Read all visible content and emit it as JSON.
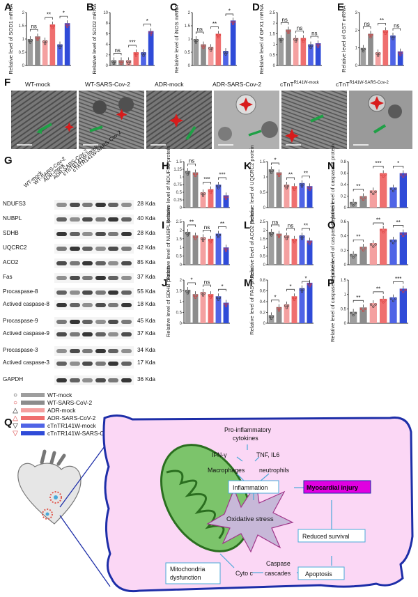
{
  "colors": {
    "wt_mock": "#9e9e9e",
    "wt_cov": "#8c8c8c",
    "adr_mock": "#f4a0a0",
    "adr_cov": "#ef6f6f",
    "r141w_mock": "#4f64e6",
    "r141w_cov": "#2f4bd8",
    "cell_fill": "#fbd7f5",
    "cell_stroke": "#1d2ea8",
    "mito_fill": "#7cc46b",
    "mito_inner": "#3f8a2f",
    "burst_fill": "#c7b8d8",
    "box_stroke": "#4aa8d8",
    "injury_fill": "#e000e0"
  },
  "panel_letters": {
    "A": "A",
    "B": "B",
    "C": "C",
    "D": "D",
    "E": "E",
    "F": "F",
    "G": "G",
    "H": "H",
    "I": "I",
    "J": "J",
    "K": "K",
    "L": "L",
    "M": "M",
    "N": "N",
    "O": "O",
    "P": "P",
    "Q": "Q"
  },
  "em_titles": [
    "WT-mock",
    "WT-SARS-Cov-2",
    "ADR-mock",
    "ADR-SARS-Cov-2",
    "cTnT",
    "cTnT"
  ],
  "em_title_suffix": [
    "",
    "",
    "",
    "",
    "R141W-mock",
    "R141W-SARS-Cov-2"
  ],
  "wb": {
    "columns": [
      "WT-mock",
      "WT-SARS-Cov-2",
      "ADR-mock",
      "ADR-SARS-Cov-2",
      "cTnTR141W-mock",
      "cTnTR141W-SARS-Cov-2"
    ],
    "rows": [
      {
        "label": "NDUFS3",
        "kda": "28 Kda"
      },
      {
        "label": "NUBPL",
        "kda": "40 Kda"
      },
      {
        "label": "SDHB",
        "kda": "28 Kda"
      },
      {
        "label": "UQCRC2",
        "kda": "42 Kda"
      },
      {
        "label": "ACO2",
        "kda": "85 Kda"
      },
      {
        "label": "Fas",
        "kda": "37 Kda"
      },
      {
        "label": "Procaspase-8",
        "kda": "55 Kda"
      },
      {
        "label": "Actived caspase-8",
        "kda": "18 Kda"
      },
      {
        "label": "Procaspase-9",
        "kda": "45 Kda"
      },
      {
        "label": "Actived caspase-9",
        "kda": "37 Kda"
      },
      {
        "label": "Procaspase-3",
        "kda": "34 Kda"
      },
      {
        "label": "Actived caspase-3",
        "kda": "17 Kda"
      },
      {
        "label": "GAPDH",
        "kda": "36 Kda"
      }
    ]
  },
  "legend": [
    {
      "symbol": "○",
      "label": "WT-mock",
      "color": "#9e9e9e"
    },
    {
      "symbol": "○",
      "label": "WT-SARS-CoV-2",
      "color": "#8c8c8c"
    },
    {
      "symbol": "△",
      "label": "ADR-mock",
      "color": "#f4a0a0"
    },
    {
      "symbol": "△",
      "label": "ADR-SARS-CoV-2",
      "color": "#ef6f6f"
    },
    {
      "symbol": "▽",
      "label": "cTnTR141W-mock",
      "color": "#4f64e6"
    },
    {
      "symbol": "▽",
      "label": "cTnTR141W-SARS-CoV-2",
      "color": "#2f4bd8"
    }
  ],
  "chart_data": [
    {
      "panel": "A",
      "type": "bar",
      "ylabel": "Relative level of SOD1 mRNA",
      "ylim": [
        0,
        2
      ],
      "yticks": [
        0,
        0.5,
        1.0,
        1.5,
        2.0
      ],
      "categories": [
        "WT-mock",
        "WT-SARS-CoV-2",
        "ADR-mock",
        "ADR-SARS-CoV-2",
        "cTnTR141W-mock",
        "cTnTR141W-SARS-CoV-2"
      ],
      "values": [
        1.0,
        1.1,
        0.95,
        1.55,
        0.8,
        1.6
      ],
      "annotations": [
        "ns",
        "**",
        "*"
      ]
    },
    {
      "panel": "B",
      "type": "bar",
      "ylabel": "Relative level of SOD2 mRNA",
      "ylim": [
        0,
        10
      ],
      "yticks": [
        0,
        2,
        4,
        6,
        8,
        10
      ],
      "values": [
        1.0,
        1.0,
        1.0,
        2.5,
        2.5,
        6.5
      ],
      "annotations": [
        "ns",
        "***",
        "*"
      ]
    },
    {
      "panel": "C",
      "type": "bar",
      "ylabel": "Relative level of iNOS mRNA",
      "ylim": [
        0,
        2
      ],
      "yticks": [
        0,
        0.5,
        1.0,
        1.5,
        2.0
      ],
      "values": [
        1.0,
        0.8,
        0.7,
        1.2,
        0.55,
        1.7
      ],
      "annotations": [
        "ns",
        "**",
        "*"
      ]
    },
    {
      "panel": "D",
      "type": "bar",
      "ylabel": "Relative level of GPX1 mRNA",
      "ylim": [
        0,
        2.5
      ],
      "yticks": [
        0,
        0.5,
        1.0,
        1.5,
        2.0,
        2.5
      ],
      "values": [
        1.3,
        1.7,
        1.3,
        1.3,
        1.0,
        1.05
      ],
      "annotations": [
        "ns",
        "ns",
        "ns"
      ]
    },
    {
      "panel": "E",
      "type": "bar",
      "ylabel": "Relative level of GST mRNA",
      "ylim": [
        0,
        3
      ],
      "yticks": [
        0,
        1,
        2,
        3
      ],
      "values": [
        1.0,
        1.8,
        0.75,
        2.0,
        1.7,
        0.8
      ],
      "annotations": [
        "ns",
        "**",
        "ns"
      ]
    },
    {
      "panel": "H",
      "type": "bar",
      "ylabel": "Relative level of NDUFS3 protein",
      "ylim": [
        0,
        1.5
      ],
      "yticks": [
        0,
        0.25,
        0.5,
        0.75,
        1.0,
        1.25,
        1.5
      ],
      "values": [
        1.2,
        1.15,
        0.5,
        0.6,
        0.75,
        0.4
      ],
      "annotations": [
        "ns",
        "***",
        "***"
      ]
    },
    {
      "panel": "I",
      "type": "bar",
      "ylabel": "Relative level of NUBPL protein",
      "ylim": [
        0,
        2.5
      ],
      "yticks": [
        0,
        0.5,
        1.0,
        1.5,
        2.0,
        2.5
      ],
      "values": [
        1.9,
        1.7,
        1.6,
        1.5,
        1.8,
        1.0
      ],
      "annotations": [
        "**",
        "ns",
        "**"
      ]
    },
    {
      "panel": "J",
      "type": "bar",
      "ylabel": "Relative level of SDHB protein",
      "ylim": [
        0,
        2.0
      ],
      "yticks": [
        0,
        0.5,
        1.0,
        1.5,
        2.0
      ],
      "values": [
        1.55,
        1.35,
        1.45,
        1.35,
        1.25,
        0.95
      ],
      "annotations": [
        "*",
        "ns",
        "*"
      ]
    },
    {
      "panel": "K",
      "type": "bar",
      "ylabel": "Relative level of UQCRC2 protein",
      "ylim": [
        0,
        1.5
      ],
      "yticks": [
        0,
        0.5,
        1.0,
        1.5
      ],
      "values": [
        1.25,
        1.15,
        0.75,
        0.7,
        0.8,
        0.7
      ],
      "annotations": [
        "*",
        "**",
        "**"
      ]
    },
    {
      "panel": "L",
      "type": "bar",
      "ylabel": "Relative level of ACO2 protein",
      "ylim": [
        0,
        2.5
      ],
      "yticks": [
        0,
        0.5,
        1.0,
        1.5,
        2.0,
        2.5
      ],
      "values": [
        1.9,
        1.8,
        1.7,
        1.5,
        1.7,
        1.4
      ],
      "annotations": [
        "ns",
        "ns",
        "**"
      ]
    },
    {
      "panel": "M",
      "type": "bar",
      "ylabel": "Relative level of FAS protein",
      "ylim": [
        0,
        0.8
      ],
      "yticks": [
        0,
        0.2,
        0.4,
        0.6,
        0.8
      ],
      "values": [
        0.15,
        0.3,
        0.35,
        0.5,
        0.65,
        0.75
      ],
      "annotations": [
        "*",
        "*",
        "*"
      ]
    },
    {
      "panel": "N",
      "type": "bar",
      "ylabel": "Relative level of caspase-8 protein",
      "ylim": [
        0,
        0.8
      ],
      "yticks": [
        0,
        0.2,
        0.4,
        0.6,
        0.8
      ],
      "values": [
        0.1,
        0.2,
        0.3,
        0.6,
        0.35,
        0.6
      ],
      "annotations": [
        "**",
        "***",
        "*"
      ]
    },
    {
      "panel": "O",
      "type": "bar",
      "ylabel": "Relative level of caspase-9 protein",
      "ylim": [
        0,
        0.6
      ],
      "yticks": [
        0,
        0.2,
        0.4,
        0.6
      ],
      "values": [
        0.15,
        0.25,
        0.3,
        0.5,
        0.35,
        0.45
      ],
      "annotations": [
        "**",
        "**",
        "**"
      ]
    },
    {
      "panel": "P",
      "type": "bar",
      "ylabel": "Relative level of caspase-3 protein",
      "ylim": [
        0,
        1.5
      ],
      "yticks": [
        0,
        0.5,
        1.0,
        1.5
      ],
      "values": [
        0.4,
        0.55,
        0.7,
        0.85,
        0.9,
        1.2
      ],
      "annotations": [
        "**",
        "**",
        "***"
      ]
    }
  ],
  "schematic": {
    "pro_inflammatory": "Pro-inflammatory",
    "cytokines": "cytokines",
    "ifn": "IFN-γ",
    "tnf": "TNF, IL6",
    "macrophages": "Macrophages",
    "neutrophils": "neutrophils",
    "inflammation": "Inflammation",
    "myocardial_injury": "Myocardial injury",
    "oxidative_stress": "Oxidative stress",
    "reduced_survival": "Reduced survival",
    "mito_dysfunction_1": "Mitochondria",
    "mito_dysfunction_2": "dysfunction",
    "cyto_c": "Cyto c",
    "caspase_1": "Caspase",
    "caspase_2": "cascades",
    "apoptosis": "Apoptosis"
  }
}
